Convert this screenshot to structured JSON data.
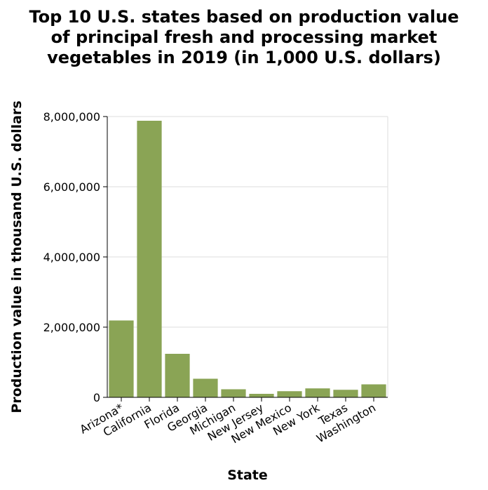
{
  "chart_data": {
    "type": "bar",
    "title_lines": [
      "Top 10 U.S. states based on production value",
      "of principal fresh and processing market",
      "vegetables in 2019 (in 1,000 U.S. dollars)"
    ],
    "xlabel": "State",
    "ylabel": "Production value in thousand U.S. dollars",
    "categories": [
      "Arizona*",
      "California",
      "Florida",
      "Georgia",
      "Michigan",
      "New Jersey",
      "New Mexico",
      "New York",
      "Texas",
      "Washington"
    ],
    "values": [
      2190000,
      7880000,
      1240000,
      530000,
      230000,
      100000,
      175000,
      255000,
      215000,
      370000
    ],
    "ylim": [
      0,
      8000000
    ],
    "yticks": [
      0,
      2000000,
      4000000,
      6000000,
      8000000
    ],
    "ytick_labels": [
      "0",
      "2,000,000",
      "4,000,000",
      "6,000,000",
      "8,000,000"
    ],
    "grid": true,
    "bar_color": "#8aa455"
  }
}
